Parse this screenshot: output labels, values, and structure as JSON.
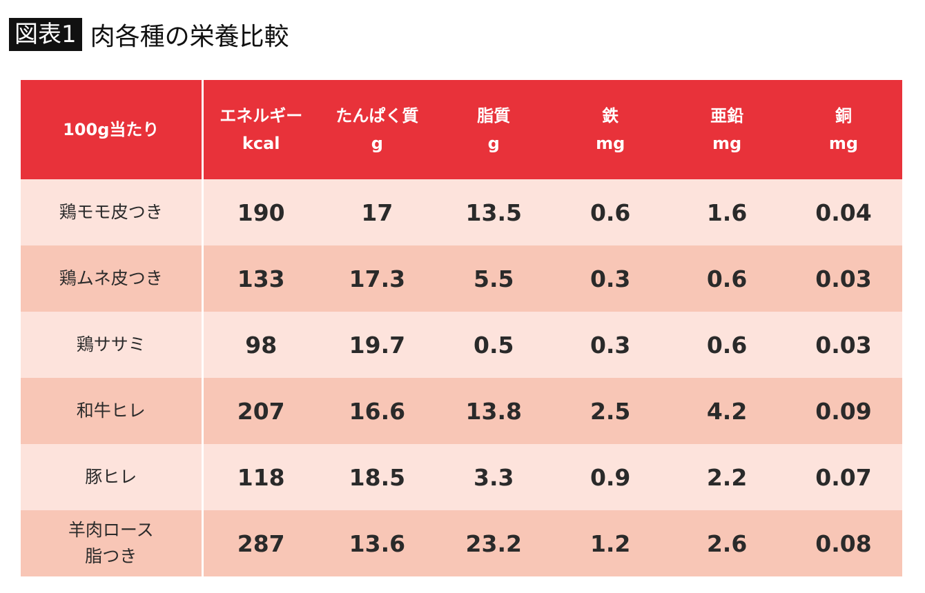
{
  "title": {
    "figure_label": "図表1",
    "text": "肉各種の栄養比較"
  },
  "colors": {
    "header": "#e8323a",
    "row_light": "#fde3dc",
    "row_dark": "#f8c6b6"
  },
  "chart_data": {
    "type": "table",
    "title": "肉各種の栄養比較",
    "corner_header": "100g当たり",
    "columns": [
      {
        "name": "エネルギー",
        "unit": "kcal"
      },
      {
        "name": "たんぱく質",
        "unit": "g"
      },
      {
        "name": "脂質",
        "unit": "g"
      },
      {
        "name": "鉄",
        "unit": "mg"
      },
      {
        "name": "亜鉛",
        "unit": "mg"
      },
      {
        "name": "銅",
        "unit": "mg"
      }
    ],
    "rows": [
      {
        "label": "鶏モモ皮つき",
        "label2": "",
        "values": [
          "190",
          "17",
          "13.5",
          "0.6",
          "1.6",
          "0.04"
        ]
      },
      {
        "label": "鶏ムネ皮つき",
        "label2": "",
        "values": [
          "133",
          "17.3",
          "5.5",
          "0.3",
          "0.6",
          "0.03"
        ]
      },
      {
        "label": "鶏ササミ",
        "label2": "",
        "values": [
          "98",
          "19.7",
          "0.5",
          "0.3",
          "0.6",
          "0.03"
        ]
      },
      {
        "label": "和牛ヒレ",
        "label2": "",
        "values": [
          "207",
          "16.6",
          "13.8",
          "2.5",
          "4.2",
          "0.09"
        ]
      },
      {
        "label": "豚ヒレ",
        "label2": "",
        "values": [
          "118",
          "18.5",
          "3.3",
          "0.9",
          "2.2",
          "0.07"
        ]
      },
      {
        "label": "羊肉ロース",
        "label2": "脂つき",
        "values": [
          "287",
          "13.6",
          "23.2",
          "1.2",
          "2.6",
          "0.08"
        ]
      }
    ]
  }
}
